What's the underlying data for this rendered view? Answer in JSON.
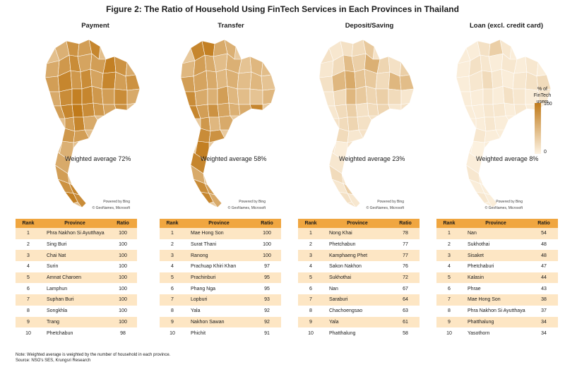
{
  "figure_title": "Figure 2: The Ratio of Household Using FinTech Services in Each Provinces in Thailand",
  "legend": {
    "title": "% of FinTech users",
    "max": "100",
    "min": "0"
  },
  "credits": {
    "powered": "Powered by Bing",
    "copyright": "© GeoNames, Microsoft"
  },
  "table_headers": {
    "rank": "Rank",
    "province": "Province",
    "ratio": "Ratio"
  },
  "colors": {
    "header": "#f0a640",
    "stripe": "#fde6c4",
    "map_low": "#fdf3e3",
    "map_high": "#c07a1a"
  },
  "chart_data": [
    {
      "type": "table",
      "title": "Payment",
      "annotation": "Weighted average 72%",
      "intensity": 0.72,
      "rows": [
        {
          "rank": "1",
          "province": "Phra Nakhon Si Ayutthaya",
          "ratio": "100"
        },
        {
          "rank": "2",
          "province": "Sing Buri",
          "ratio": "100"
        },
        {
          "rank": "3",
          "province": "Chai Nat",
          "ratio": "100"
        },
        {
          "rank": "4",
          "province": "Surin",
          "ratio": "100"
        },
        {
          "rank": "5",
          "province": "Amnat Charoen",
          "ratio": "100"
        },
        {
          "rank": "6",
          "province": "Lamphun",
          "ratio": "100"
        },
        {
          "rank": "7",
          "province": "Suphan Buri",
          "ratio": "100"
        },
        {
          "rank": "8",
          "province": "Songkhla",
          "ratio": "100"
        },
        {
          "rank": "9",
          "province": "Trang",
          "ratio": "100"
        },
        {
          "rank": "10",
          "province": "Phetchabun",
          "ratio": "98"
        }
      ]
    },
    {
      "type": "table",
      "title": "Transfer",
      "annotation": "Weighted average 58%",
      "intensity": 0.58,
      "rows": [
        {
          "rank": "1",
          "province": "Mae Hong Son",
          "ratio": "100"
        },
        {
          "rank": "2",
          "province": "Surat Thani",
          "ratio": "100"
        },
        {
          "rank": "3",
          "province": "Ranong",
          "ratio": "100"
        },
        {
          "rank": "4",
          "province": "Prachuap Khiri Khan",
          "ratio": "97"
        },
        {
          "rank": "5",
          "province": "Prachinburi",
          "ratio": "95"
        },
        {
          "rank": "6",
          "province": "Phang Nga",
          "ratio": "95"
        },
        {
          "rank": "7",
          "province": "Lopburi",
          "ratio": "93"
        },
        {
          "rank": "8",
          "province": "Yala",
          "ratio": "92"
        },
        {
          "rank": "9",
          "province": "Nakhon Sawan",
          "ratio": "92"
        },
        {
          "rank": "10",
          "province": "Phichit",
          "ratio": "91"
        }
      ]
    },
    {
      "type": "table",
      "title": "Deposit/Saving",
      "annotation": "Weighted average 23%",
      "intensity": 0.23,
      "rows": [
        {
          "rank": "1",
          "province": "Nong Khai",
          "ratio": "78"
        },
        {
          "rank": "2",
          "province": "Phetchabun",
          "ratio": "77"
        },
        {
          "rank": "3",
          "province": "Kamphaeng Phet",
          "ratio": "77"
        },
        {
          "rank": "4",
          "province": "Sakon Nakhon",
          "ratio": "76"
        },
        {
          "rank": "5",
          "province": "Sukhothai",
          "ratio": "72"
        },
        {
          "rank": "6",
          "province": "Nan",
          "ratio": "67"
        },
        {
          "rank": "7",
          "province": "Saraburi",
          "ratio": "64"
        },
        {
          "rank": "8",
          "province": "Chachoengsao",
          "ratio": "63"
        },
        {
          "rank": "9",
          "province": "Yala",
          "ratio": "61"
        },
        {
          "rank": "10",
          "province": "Phatthalung",
          "ratio": "58"
        }
      ]
    },
    {
      "type": "table",
      "title": "Loan (excl. credit card)",
      "annotation": "Weighted average 8%",
      "intensity": 0.08,
      "rows": [
        {
          "rank": "1",
          "province": "Nan",
          "ratio": "54"
        },
        {
          "rank": "2",
          "province": "Sukhothai",
          "ratio": "48"
        },
        {
          "rank": "3",
          "province": "Sisaket",
          "ratio": "48"
        },
        {
          "rank": "4",
          "province": "Phetchaburi",
          "ratio": "47"
        },
        {
          "rank": "5",
          "province": "Kalasin",
          "ratio": "44"
        },
        {
          "rank": "6",
          "province": "Phrae",
          "ratio": "43"
        },
        {
          "rank": "7",
          "province": "Mae Hong Son",
          "ratio": "38"
        },
        {
          "rank": "8",
          "province": "Phra Nakhon Si Ayutthaya",
          "ratio": "37"
        },
        {
          "rank": "9",
          "province": "Phatthalung",
          "ratio": "34"
        },
        {
          "rank": "10",
          "province": "Yasothorn",
          "ratio": "34"
        }
      ]
    }
  ],
  "note": {
    "line1": "Note: Weighted average is weighted by the number of household in each province.",
    "line2": "Source: NSO's SES, Krungsri Research"
  }
}
